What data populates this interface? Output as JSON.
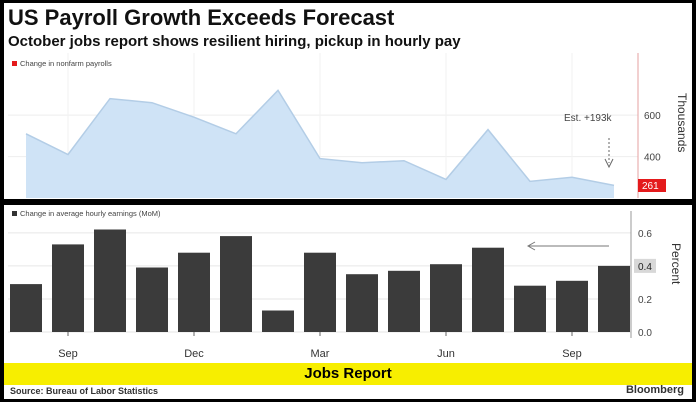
{
  "title": "US Payroll Growth Exceeds Forecast",
  "subtitle": "October jobs report shows resilient hiring, pickup in hourly pay",
  "banner": "Jobs Report",
  "source": "Source: Bureau of Labor Statistics",
  "brand": "Bloomberg",
  "colors": {
    "area_fill": "#cfe3f6",
    "area_line": "#b3cde6",
    "bar": "#3b3b3b",
    "highlight": "#e41a1c",
    "banner": "#f7ee00"
  },
  "chart_data": [
    {
      "type": "area",
      "legend": "Change in nonfarm payrolls",
      "ylabel": "Thousands",
      "yticks": [
        400,
        600
      ],
      "ylim": [
        200,
        900
      ],
      "values": [
        510,
        410,
        680,
        660,
        590,
        510,
        720,
        390,
        370,
        380,
        290,
        530,
        280,
        300,
        261
      ],
      "last_label": "261",
      "annotation": "Est. +193k",
      "xticks": [
        "Sep",
        "Dec",
        "Mar",
        "Jun",
        "Sep"
      ]
    },
    {
      "type": "bar",
      "legend": "Change in average hourly earnings (MoM)",
      "ylabel": "Percent",
      "yticks": [
        "0.0",
        "0.2",
        "0.4",
        "0.6"
      ],
      "ylim": [
        0,
        0.72
      ],
      "values": [
        0.29,
        0.53,
        0.62,
        0.39,
        0.48,
        0.58,
        0.13,
        0.48,
        0.35,
        0.37,
        0.41,
        0.51,
        0.28,
        0.31,
        0.4
      ],
      "last_label": "0.4",
      "xticks": [
        "Sep",
        "Dec",
        "Mar",
        "Jun",
        "Sep"
      ]
    }
  ]
}
